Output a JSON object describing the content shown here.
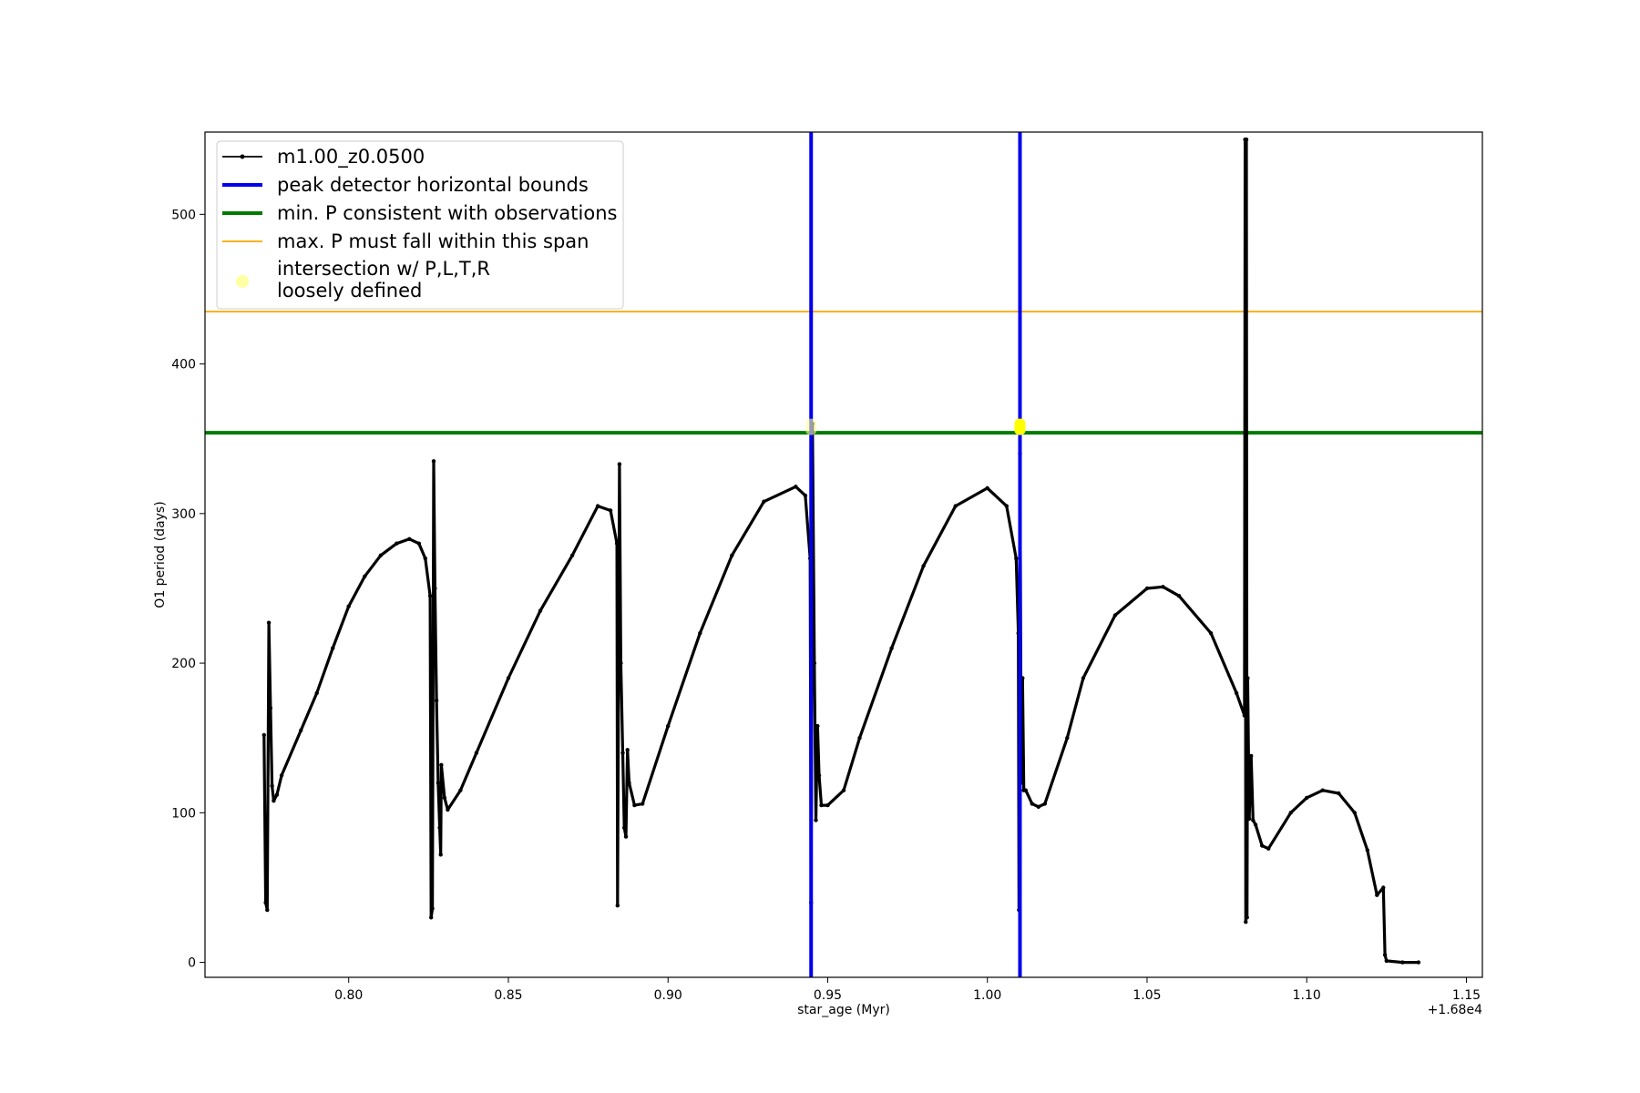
{
  "chart_data": {
    "type": "line",
    "title": "",
    "xlabel": "star_age (Myr)",
    "ylabel": "O1 period (days)",
    "x_offset_label": "+1.68e4",
    "xlim": [
      0.755,
      1.155
    ],
    "ylim": [
      -10,
      555
    ],
    "xticks": [
      0.8,
      0.85,
      0.9,
      0.95,
      1.0,
      1.05,
      1.1,
      1.15
    ],
    "xtick_labels": [
      "0.80",
      "0.85",
      "0.90",
      "0.95",
      "1.00",
      "1.05",
      "1.10",
      "1.15"
    ],
    "yticks": [
      0,
      100,
      200,
      300,
      400,
      500
    ],
    "ytick_labels": [
      "0",
      "100",
      "200",
      "300",
      "400",
      "500"
    ],
    "grid": false,
    "legend_position": "top-left",
    "legend": [
      {
        "label": "m1.00_z0.0500",
        "style": "line-marker",
        "color": "#000000"
      },
      {
        "label": "peak detector horizontal bounds",
        "style": "thick-line",
        "color": "#0000ee"
      },
      {
        "label": "min. P consistent with observations",
        "style": "thick-line",
        "color": "#007a00"
      },
      {
        "label": "max. P must fall within this span",
        "style": "thin-line",
        "color": "#ffa500"
      },
      {
        "label": "intersection w/ P,L,T,R",
        "label_line2": "loosely defined",
        "style": "dot",
        "color": "#ffff66"
      }
    ],
    "series": [
      {
        "name": "m1.00_z0.0500",
        "color": "#000000",
        "points": [
          [
            0.7735,
            152
          ],
          [
            0.774,
            40
          ],
          [
            0.7745,
            35
          ],
          [
            0.775,
            227
          ],
          [
            0.7755,
            170
          ],
          [
            0.776,
            118
          ],
          [
            0.7765,
            108
          ],
          [
            0.7775,
            112
          ],
          [
            0.779,
            125
          ],
          [
            0.785,
            155
          ],
          [
            0.79,
            180
          ],
          [
            0.795,
            210
          ],
          [
            0.8,
            238
          ],
          [
            0.805,
            258
          ],
          [
            0.81,
            272
          ],
          [
            0.815,
            280
          ],
          [
            0.819,
            283
          ],
          [
            0.822,
            280
          ],
          [
            0.824,
            270
          ],
          [
            0.8255,
            245
          ],
          [
            0.8258,
            30
          ],
          [
            0.8262,
            36
          ],
          [
            0.8266,
            335
          ],
          [
            0.827,
            250
          ],
          [
            0.8275,
            175
          ],
          [
            0.828,
            120
          ],
          [
            0.8285,
            90
          ],
          [
            0.8288,
            72
          ],
          [
            0.829,
            132
          ],
          [
            0.83,
            110
          ],
          [
            0.831,
            102
          ],
          [
            0.835,
            115
          ],
          [
            0.84,
            140
          ],
          [
            0.85,
            190
          ],
          [
            0.86,
            235
          ],
          [
            0.87,
            272
          ],
          [
            0.878,
            305
          ],
          [
            0.882,
            302
          ],
          [
            0.884,
            280
          ],
          [
            0.8842,
            38
          ],
          [
            0.8848,
            333
          ],
          [
            0.8852,
            200
          ],
          [
            0.8858,
            140
          ],
          [
            0.8863,
            90
          ],
          [
            0.8868,
            84
          ],
          [
            0.8873,
            142
          ],
          [
            0.8878,
            120
          ],
          [
            0.8895,
            105
          ],
          [
            0.892,
            106
          ],
          [
            0.9,
            158
          ],
          [
            0.91,
            220
          ],
          [
            0.92,
            272
          ],
          [
            0.93,
            308
          ],
          [
            0.94,
            318
          ],
          [
            0.943,
            312
          ],
          [
            0.9445,
            270
          ],
          [
            0.9448,
            40
          ],
          [
            0.9452,
            360
          ],
          [
            0.9458,
            200
          ],
          [
            0.9463,
            95
          ],
          [
            0.9468,
            158
          ],
          [
            0.9473,
            125
          ],
          [
            0.948,
            105
          ],
          [
            0.95,
            105
          ],
          [
            0.955,
            115
          ],
          [
            0.96,
            150
          ],
          [
            0.97,
            210
          ],
          [
            0.98,
            265
          ],
          [
            0.99,
            305
          ],
          [
            1.0,
            317
          ],
          [
            1.006,
            305
          ],
          [
            1.009,
            270
          ],
          [
            1.0097,
            220
          ],
          [
            1.0099,
            35
          ],
          [
            1.0102,
            340
          ],
          [
            1.0106,
            120
          ],
          [
            1.011,
            190
          ],
          [
            1.0114,
            115
          ],
          [
            1.012,
            115
          ],
          [
            1.014,
            106
          ],
          [
            1.016,
            104
          ],
          [
            1.018,
            106
          ],
          [
            1.025,
            150
          ],
          [
            1.03,
            190
          ],
          [
            1.04,
            232
          ],
          [
            1.05,
            250
          ],
          [
            1.055,
            251
          ],
          [
            1.06,
            245
          ],
          [
            1.07,
            220
          ],
          [
            1.078,
            180
          ],
          [
            1.0805,
            165
          ],
          [
            1.0807,
            550
          ],
          [
            1.0809,
            27
          ],
          [
            1.0811,
            550
          ],
          [
            1.0813,
            30
          ],
          [
            1.0815,
            190
          ],
          [
            1.082,
            96
          ],
          [
            1.0826,
            138
          ],
          [
            1.0832,
            95
          ],
          [
            1.084,
            92
          ],
          [
            1.086,
            78
          ],
          [
            1.088,
            76
          ],
          [
            1.095,
            100
          ],
          [
            1.1,
            110
          ],
          [
            1.105,
            115
          ],
          [
            1.11,
            113
          ],
          [
            1.115,
            100
          ],
          [
            1.119,
            75
          ],
          [
            1.122,
            45
          ],
          [
            1.124,
            50
          ],
          [
            1.1245,
            5
          ],
          [
            1.125,
            1
          ],
          [
            1.13,
            0
          ],
          [
            1.135,
            0
          ]
        ]
      }
    ],
    "vlines": [
      {
        "x": 0.9448,
        "color": "#0000ee",
        "kind": "peak-bound"
      },
      {
        "x": 1.0102,
        "color": "#0000ee",
        "kind": "peak-bound"
      }
    ],
    "hlines": [
      {
        "y": 354,
        "color": "#007a00",
        "kind": "min-P"
      },
      {
        "y": 435,
        "color": "#ffa500",
        "kind": "max-P"
      }
    ],
    "intersections": [
      {
        "x": 0.9448,
        "y": 358,
        "color": "#ffff99",
        "opacity": 0.6
      },
      {
        "x": 1.0102,
        "y": 358,
        "color": "#ffff00",
        "opacity": 1.0
      }
    ]
  }
}
